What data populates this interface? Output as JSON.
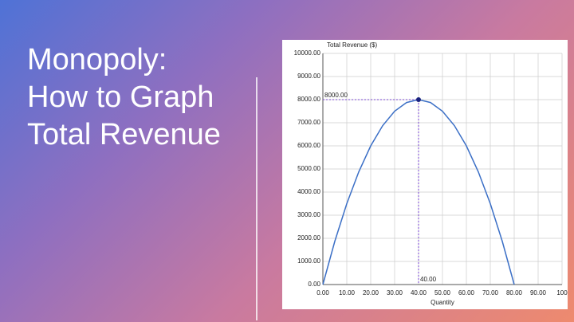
{
  "slide": {
    "title_lines": [
      "Monopoly:",
      "How to Graph",
      "Total Revenue"
    ]
  },
  "chart_data": {
    "type": "line",
    "ylabel": "Total Revenue ($)",
    "xlabel": "Quantity",
    "x": [
      0,
      5,
      10,
      15,
      20,
      25,
      30,
      35,
      40,
      45,
      50,
      55,
      60,
      65,
      70,
      75,
      80
    ],
    "series": [
      {
        "color": "#3b6fc6",
        "values": [
          0,
          1875,
          3500,
          4875,
          6000,
          6875,
          7500,
          7875,
          8000,
          7875,
          7500,
          6875,
          6000,
          4875,
          3500,
          1875,
          0
        ]
      }
    ],
    "xlim": [
      0,
      100
    ],
    "ylim": [
      0,
      10000
    ],
    "xticks": [
      {
        "value": 0,
        "label": "0.00"
      },
      {
        "value": 10,
        "label": "10.00"
      },
      {
        "value": 20,
        "label": "20.00"
      },
      {
        "value": 30,
        "label": "30.00"
      },
      {
        "value": 40,
        "label": "40.00"
      },
      {
        "value": 50,
        "label": "50.00"
      },
      {
        "value": 60,
        "label": "60.00"
      },
      {
        "value": 70,
        "label": "70.00"
      },
      {
        "value": 80,
        "label": "80.00"
      },
      {
        "value": 90,
        "label": "90.00"
      },
      {
        "value": 100,
        "label": "100"
      }
    ],
    "yticks": [
      {
        "value": 0,
        "label": "0.00"
      },
      {
        "value": 1000,
        "label": "1000.00"
      },
      {
        "value": 2000,
        "label": "2000.00"
      },
      {
        "value": 3000,
        "label": "3000.00"
      },
      {
        "value": 4000,
        "label": "4000.00"
      },
      {
        "value": 5000,
        "label": "5000.00"
      },
      {
        "value": 6000,
        "label": "6000.00"
      },
      {
        "value": 7000,
        "label": "7000.00"
      },
      {
        "value": 8000,
        "label": "8000.00"
      },
      {
        "value": 9000,
        "label": "9000.00"
      },
      {
        "value": 10000,
        "label": "10000.00"
      }
    ],
    "grid": true,
    "annotations": [
      {
        "x": 40,
        "y": 8000,
        "x_label": "40.00",
        "y_label": "8000.00",
        "color": "#7a44d6"
      }
    ]
  }
}
